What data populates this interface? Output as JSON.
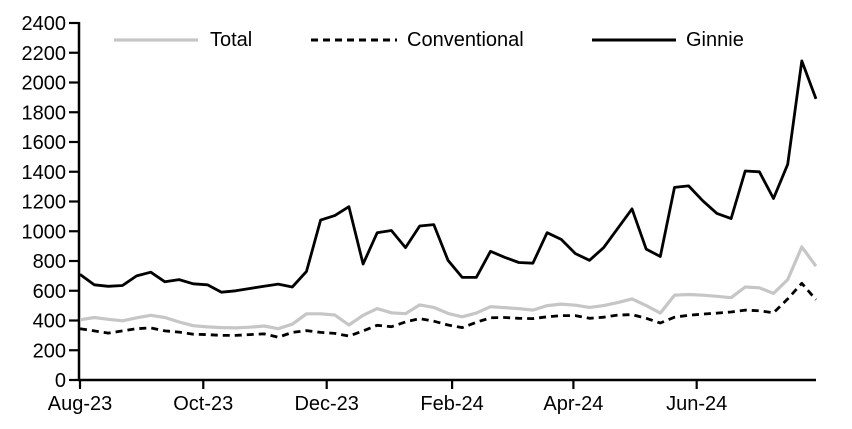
{
  "chart_data": {
    "type": "line",
    "title": "",
    "xlabel": "",
    "ylabel": "",
    "ylim": [
      0,
      2400
    ],
    "y_tick_step": 200,
    "y_tick_labels": [
      "0",
      "200",
      "400",
      "600",
      "800",
      "1000",
      "1200",
      "1400",
      "1600",
      "1800",
      "2000",
      "2200",
      "2400"
    ],
    "grid": false,
    "legend_position": "top-inside-horizontal",
    "x_total_weeks": 52,
    "x_tick_labels": [
      "Aug-23",
      "Oct-23",
      "Dec-23",
      "Feb-24",
      "Apr-24",
      "Jun-24"
    ],
    "x_tick_weeks": [
      0,
      8.71,
      17.43,
      26.29,
      34.86,
      43.57
    ],
    "frequency": "weekly",
    "series": [
      {
        "name": "Total",
        "color": "#c6c6c6",
        "style": "solid",
        "values": [
          405,
          420,
          408,
          398,
          418,
          435,
          420,
          390,
          365,
          357,
          352,
          350,
          355,
          363,
          345,
          375,
          445,
          445,
          437,
          370,
          435,
          480,
          452,
          446,
          505,
          488,
          448,
          425,
          450,
          493,
          487,
          480,
          470,
          500,
          510,
          503,
          488,
          500,
          520,
          545,
          500,
          450,
          570,
          575,
          570,
          563,
          553,
          625,
          620,
          582,
          675,
          895,
          765
        ]
      },
      {
        "name": "Conventional",
        "color": "#000000",
        "style": "dashed",
        "values": [
          345,
          330,
          315,
          330,
          345,
          350,
          330,
          322,
          308,
          305,
          300,
          300,
          305,
          310,
          288,
          320,
          332,
          320,
          313,
          295,
          330,
          368,
          358,
          390,
          413,
          395,
          370,
          352,
          388,
          418,
          420,
          415,
          413,
          425,
          433,
          433,
          415,
          422,
          436,
          440,
          415,
          383,
          422,
          435,
          443,
          450,
          457,
          470,
          465,
          452,
          545,
          650,
          540
        ]
      },
      {
        "name": "Ginnie",
        "color": "#000000",
        "style": "solid",
        "values": [
          710,
          640,
          630,
          635,
          700,
          725,
          660,
          675,
          647,
          640,
          590,
          600,
          615,
          630,
          645,
          625,
          730,
          1075,
          1105,
          1165,
          780,
          990,
          1005,
          890,
          1035,
          1045,
          805,
          690,
          690,
          865,
          825,
          790,
          785,
          990,
          945,
          850,
          805,
          890,
          1020,
          1150,
          880,
          830,
          1295,
          1305,
          1205,
          1120,
          1085,
          1405,
          1400,
          1220,
          1450,
          2145,
          1890
        ]
      }
    ]
  }
}
